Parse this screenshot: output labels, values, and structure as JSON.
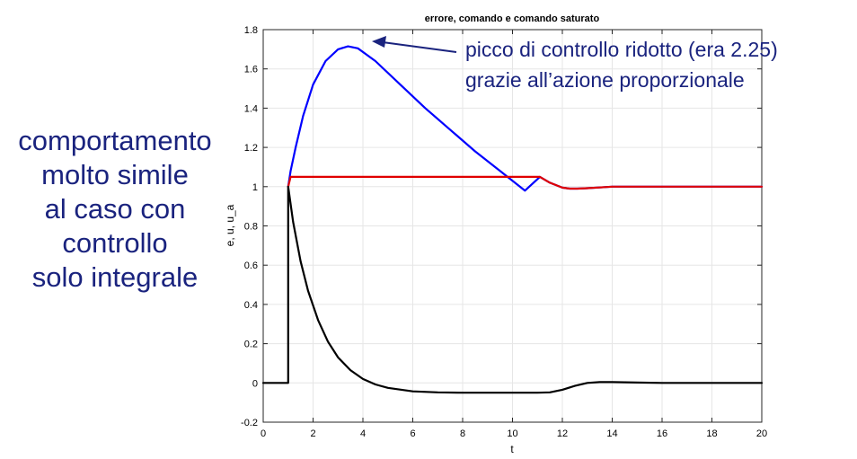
{
  "side_note": [
    "comportamento",
    "molto simile",
    "al caso con",
    "controllo",
    "solo integrale"
  ],
  "annotation": [
    "picco di controllo ridotto (era 2.25)",
    "grazie all’azione proporzionale"
  ],
  "colors": {
    "text_accent": "#1a237e",
    "series_u": "#0000ff",
    "series_u_a": "#e00000",
    "series_e": "#000000",
    "grid": "#e6e6e6"
  },
  "chart_data": {
    "type": "line",
    "title": "errore, comando e comando saturato",
    "xlabel": "t",
    "ylabel": "e, u, u_a",
    "xlim": [
      0,
      20
    ],
    "ylim": [
      -0.2,
      1.8
    ],
    "xticks": [
      0,
      2,
      4,
      6,
      8,
      10,
      12,
      14,
      16,
      18,
      20
    ],
    "yticks": [
      -0.2,
      0,
      0.2,
      0.4,
      0.6,
      0.8,
      1,
      1.2,
      1.4,
      1.6,
      1.8
    ],
    "grid": true,
    "series": [
      {
        "color": "#0000ff",
        "x": [
          1,
          1.1,
          1.3,
          1.6,
          2,
          2.5,
          3,
          3.4,
          3.8,
          4.5,
          5.5,
          6.5,
          7.5,
          8.5,
          9.5,
          10.5,
          11.1,
          11.5,
          12,
          12.3,
          12.6,
          13,
          13.5,
          14,
          15,
          16,
          18,
          20
        ],
        "y": [
          1.0,
          1.08,
          1.2,
          1.36,
          1.52,
          1.64,
          1.7,
          1.715,
          1.705,
          1.64,
          1.52,
          1.4,
          1.29,
          1.18,
          1.08,
          0.98,
          1.05,
          1.02,
          0.995,
          0.99,
          0.99,
          0.992,
          0.996,
          1.0,
          1.0,
          1.0,
          1.0,
          1.0
        ]
      },
      {
        "color": "#e00000",
        "x": [
          1,
          1.1,
          11.1,
          11.5,
          12,
          12.3,
          12.6,
          13,
          13.5,
          14,
          15,
          16,
          18,
          20
        ],
        "y": [
          1.0,
          1.05,
          1.05,
          1.02,
          0.995,
          0.99,
          0.99,
          0.992,
          0.996,
          1.0,
          1.0,
          1.0,
          1.0,
          1.0
        ]
      },
      {
        "color": "#000000",
        "x": [
          0,
          1,
          1,
          1.2,
          1.5,
          1.8,
          2.2,
          2.6,
          3,
          3.5,
          4,
          4.5,
          5,
          6,
          7,
          8,
          9,
          10,
          11,
          11.5,
          12,
          12.5,
          13,
          13.5,
          14,
          15,
          16,
          18,
          20
        ],
        "y": [
          0,
          0,
          1.0,
          0.82,
          0.62,
          0.47,
          0.32,
          0.21,
          0.13,
          0.065,
          0.02,
          -0.008,
          -0.025,
          -0.043,
          -0.048,
          -0.05,
          -0.05,
          -0.05,
          -0.05,
          -0.048,
          -0.035,
          -0.015,
          0.0,
          0.004,
          0.004,
          0.002,
          0.0,
          0.0,
          0.0
        ]
      }
    ]
  }
}
